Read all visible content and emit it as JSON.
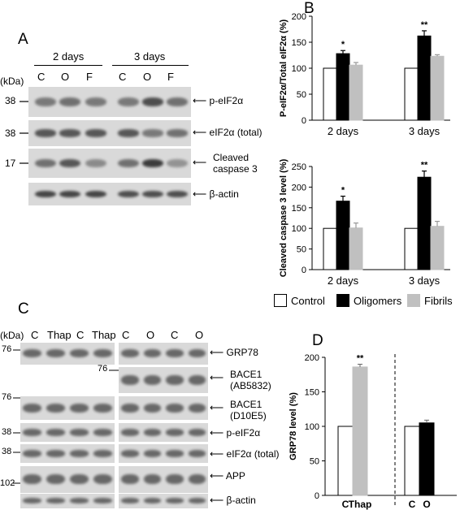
{
  "panels": {
    "a": "A",
    "b": "B",
    "c": "C",
    "d": "D"
  },
  "blot_a": {
    "groups": [
      "2 days",
      "3 days"
    ],
    "lanes": [
      "C",
      "O",
      "F",
      "C",
      "O",
      "F"
    ],
    "kda_label": "(kDa)",
    "markers": [
      "38",
      "38",
      "17"
    ],
    "rows": [
      "p-eIF2α",
      "eIF2α (total)",
      "Cleaved caspase 3",
      "β-actin"
    ],
    "band_intensity": [
      [
        0.55,
        0.6,
        0.55,
        0.55,
        0.8,
        0.6
      ],
      [
        0.75,
        0.75,
        0.75,
        0.75,
        0.55,
        0.6
      ],
      [
        0.6,
        0.75,
        0.45,
        0.6,
        0.9,
        0.4
      ],
      [
        0.85,
        0.85,
        0.85,
        0.8,
        0.8,
        0.8
      ]
    ]
  },
  "blot_c": {
    "kda_label": "(kDa)",
    "lanes_left": [
      "C",
      "Thap",
      "C",
      "Thap"
    ],
    "lanes_right": [
      "C",
      "O",
      "C",
      "O"
    ],
    "markers": [
      "76",
      "76",
      "38",
      "38",
      "102"
    ],
    "bace_marker": "76",
    "rows": [
      "GRP78",
      "BACE1 (AB5832)",
      "BACE1 (D10E5)",
      "p-eIF2α",
      "eIF2α (total)",
      "APP",
      "β-actin"
    ]
  },
  "chart_data": [
    {
      "type": "bar",
      "ylabel": "P-eIF2α/Total eIF2α (%)",
      "categories": [
        "2 days",
        "3 days"
      ],
      "series": [
        {
          "name": "Control",
          "values": [
            100,
            100
          ]
        },
        {
          "name": "Oligomers",
          "values": [
            128,
            162
          ]
        },
        {
          "name": "Fibrils",
          "values": [
            106,
            123
          ]
        }
      ],
      "errors": [
        [
          0,
          0
        ],
        [
          6,
          10
        ],
        [
          5,
          3
        ]
      ],
      "significance": [
        [
          "",
          "*",
          ""
        ],
        [
          "",
          "**",
          ""
        ]
      ],
      "ylim": [
        0,
        200
      ],
      "yticks": [
        "0",
        "50",
        "100",
        "150",
        "200"
      ]
    },
    {
      "type": "bar",
      "ylabel": "Cleaved caspase 3 level (%)",
      "categories": [
        "2 days",
        "3 days"
      ],
      "series": [
        {
          "name": "Control",
          "values": [
            100,
            100
          ]
        },
        {
          "name": "Oligomers",
          "values": [
            166,
            224
          ]
        },
        {
          "name": "Fibrils",
          "values": [
            101,
            105
          ]
        }
      ],
      "errors": [
        [
          0,
          0
        ],
        [
          12,
          15
        ],
        [
          12,
          12
        ]
      ],
      "significance": [
        [
          "",
          "*",
          ""
        ],
        [
          "",
          "**",
          ""
        ]
      ],
      "ylim": [
        0,
        250
      ],
      "yticks": [
        "0",
        "50",
        "100",
        "150",
        "200",
        "250"
      ]
    },
    {
      "type": "bar",
      "ylabel": "GRP78 level (%)",
      "categories": [
        "C",
        "Thap",
        "C",
        "O"
      ],
      "values": [
        100,
        186,
        100,
        105
      ],
      "errors": [
        0,
        4,
        0,
        4
      ],
      "colors": [
        "#ffffff",
        "#c0c0c0",
        "#ffffff",
        "#000000"
      ],
      "significance": [
        "",
        "**",
        "",
        ""
      ],
      "ylim": [
        0,
        200
      ],
      "yticks": [
        "0",
        "50",
        "100",
        "150",
        "200"
      ]
    }
  ],
  "legend": {
    "items": [
      "Control",
      "Oligomers",
      "Fibrils"
    ]
  },
  "colors": {
    "control": "#ffffff",
    "oligomers": "#000000",
    "fibrils": "#c0c0c0"
  }
}
